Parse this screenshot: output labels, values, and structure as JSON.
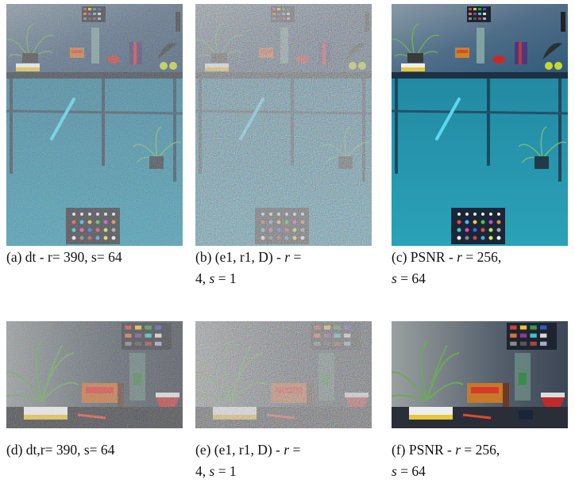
{
  "figure": {
    "panels": [
      {
        "caption": [
          [
            {
              "text": "(a) dt - r= 390, s= 64"
            }
          ]
        ]
      },
      {
        "caption": [
          [
            {
              "text": "(b) (e1, r1, D) - "
            },
            {
              "text": "r",
              "italic": true
            },
            {
              "text": " ="
            }
          ],
          [
            {
              "text": "4, "
            },
            {
              "text": "s",
              "italic": true
            },
            {
              "text": " = 1"
            }
          ]
        ]
      },
      {
        "caption": [
          [
            {
              "text": "(c) PSNR - "
            },
            {
              "text": "r",
              "italic": true
            },
            {
              "text": " = 256,"
            }
          ],
          [
            {
              "text": "s",
              "italic": true
            },
            {
              "text": " = 64"
            }
          ]
        ]
      },
      {
        "caption": [
          [
            {
              "text": "(d) dt,r= 390, s= 64"
            }
          ]
        ]
      },
      {
        "caption": [
          [
            {
              "text": "(e) (e1, r1, D) - "
            },
            {
              "text": "r",
              "italic": true
            },
            {
              "text": " ="
            }
          ],
          [
            {
              "text": "4, "
            },
            {
              "text": "s",
              "italic": true
            },
            {
              "text": " = 1"
            }
          ]
        ]
      },
      {
        "caption": [
          [
            {
              "text": "(f) PSNR - "
            },
            {
              "text": "r",
              "italic": true
            },
            {
              "text": " = 256,"
            }
          ],
          [
            {
              "text": "s",
              "italic": true
            },
            {
              "text": " = 64"
            }
          ]
        ]
      }
    ]
  }
}
